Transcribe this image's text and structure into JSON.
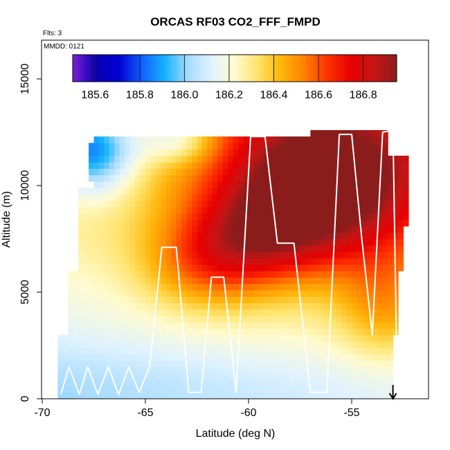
{
  "chart_data": {
    "type": "heatmap",
    "title": "ORCAS RF03 CO2_FFF_FMPD",
    "flights_label": "Flts: 3",
    "date_label": "MMDD: 0121",
    "xlabel": "Latitude (deg N)",
    "ylabel": "Altitude (m)",
    "xlim": [
      -70,
      -51
    ],
    "ylim": [
      0,
      16500
    ],
    "x_ticks": [
      -70,
      -65,
      -60,
      -55
    ],
    "y_ticks": [
      0,
      5000,
      10000,
      15000
    ],
    "colorbar": {
      "range": [
        185.5,
        186.95
      ],
      "ticks": [
        185.6,
        185.8,
        186.0,
        186.2,
        186.4,
        186.6,
        186.8
      ],
      "tick_labels": [
        "185.6",
        "185.8",
        "186.0",
        "186.2",
        "186.4",
        "186.6",
        "186.8"
      ]
    },
    "field_description": "CO2 curtain: low values (~185.6) at high altitude near -67, high values (~186.8) at 7-12 km between -60 and -53",
    "flight_track": {
      "lat": [
        -69.1,
        -68.7,
        -68.2,
        -67.8,
        -67.3,
        -66.8,
        -66.3,
        -65.8,
        -65.3,
        -64.8,
        -64.2,
        -63.5,
        -62.9,
        -62.3,
        -61.8,
        -61.2,
        -60.6,
        -59.9,
        -59.2,
        -58.6,
        -57.8,
        -57.0,
        -56.2,
        -55.6,
        -55.0,
        -54.5,
        -54.0,
        -53.5,
        -53.0,
        -52.8,
        -52.4
      ],
      "alt": [
        200,
        1500,
        200,
        1500,
        200,
        1500,
        200,
        1500,
        300,
        1500,
        7100,
        7100,
        300,
        300,
        5700,
        5700,
        300,
        12300,
        12300,
        7300,
        7300,
        300,
        300,
        12400,
        12400,
        7400,
        3000,
        12500,
        12600,
        900,
        900
      ]
    },
    "marker_arrow_lat": -53
  },
  "colors": {
    "track": "#ffffff",
    "background": "#ffffff",
    "axis": "#000000",
    "palette": [
      "#7b1fd6",
      "#0a00b0",
      "#0000d2",
      "#1060ff",
      "#18b4ff",
      "#a8dcff",
      "#dff2ff",
      "#fffbd0",
      "#ffe36a",
      "#ffb60a",
      "#ff8000",
      "#ff3300",
      "#e80000",
      "#c81414",
      "#8b1c1c"
    ]
  }
}
